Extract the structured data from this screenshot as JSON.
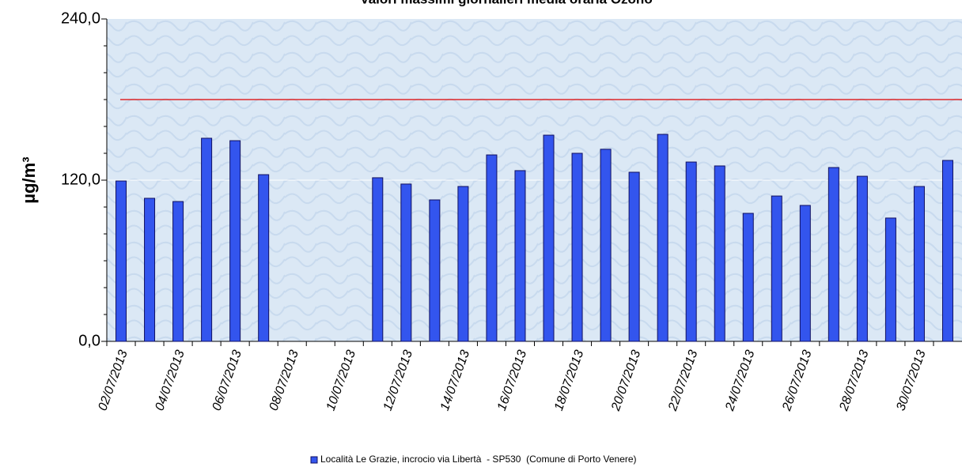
{
  "chart_data": {
    "type": "bar",
    "title": "Valori massimi giornalieri media oraria Ozono",
    "y_label": "µg/m³",
    "categories": [
      "02/07/2013",
      null,
      "04/07/2013",
      null,
      "06/07/2013",
      null,
      "08/07/2013",
      null,
      "10/07/2013",
      null,
      "12/07/2013",
      null,
      "14/07/2013",
      null,
      "16/07/2013",
      null,
      "18/07/2013",
      null,
      "20/07/2013",
      null,
      "22/07/2013",
      null,
      "24/07/2013",
      null,
      "26/07/2013",
      null,
      "28/07/2013",
      null,
      "30/07/2013",
      null
    ],
    "series": [
      {
        "name": "Località Le Grazie, incrocio via Libertà  - SP530  (Comune di Porto Venere)",
        "color": "#3355ee",
        "values": [
          119.4,
          106.5,
          104.1,
          151.2,
          149.4,
          124.1,
          null,
          null,
          null,
          121.8,
          117.1,
          105.3,
          115.3,
          138.8,
          127.1,
          153.5,
          140,
          143,
          125.9,
          154.1,
          133.5,
          130.6,
          95.3,
          108.2,
          101.2,
          129.4,
          122.9,
          91.8,
          115.3,
          134.7
        ]
      }
    ],
    "ylim": [
      0,
      240
    ],
    "yticks": [
      {
        "value": 0,
        "label": "0,0"
      },
      {
        "value": 120,
        "label": "120,0"
      },
      {
        "value": 240,
        "label": "240,0"
      }
    ],
    "yminorticks": [
      20,
      40,
      60,
      80,
      100,
      140,
      160,
      180,
      200,
      220
    ],
    "reference_line": {
      "value": 180,
      "color": "#e00000"
    },
    "grid": true,
    "legend": "bottom"
  }
}
